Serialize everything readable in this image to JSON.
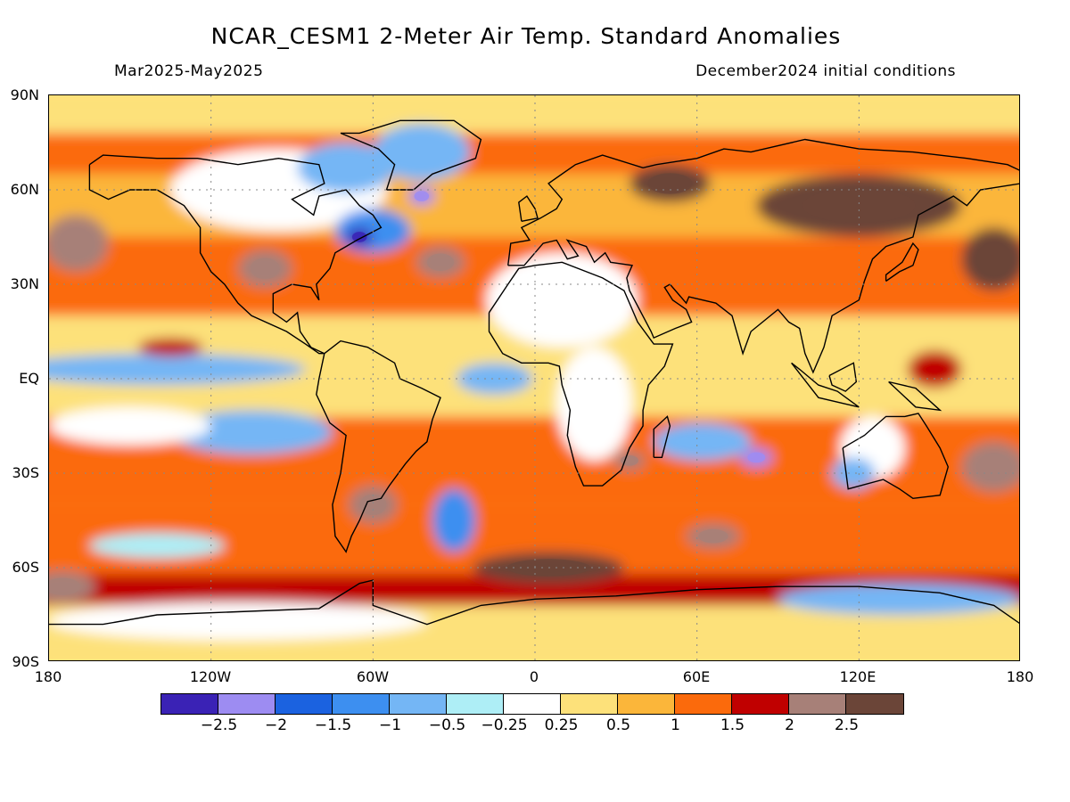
{
  "header": {
    "title": "NCAR_CESM1 2-Meter Air Temp. Standard Anomalies",
    "period": "Mar2025-May2025",
    "init": "December2024 initial conditions"
  },
  "axes": {
    "lat_labels": [
      "90N",
      "60N",
      "30N",
      "EQ",
      "30S",
      "60S",
      "90S"
    ],
    "lon_labels": [
      "180",
      "120W",
      "60W",
      "0",
      "60E",
      "120E",
      "180"
    ]
  },
  "legend": {
    "colors": [
      "#3a22b5",
      "#9d8cf2",
      "#1b62e0",
      "#3d8ff0",
      "#74b6f5",
      "#aeeef6",
      "#ffffff",
      "#fde17a",
      "#fbb63a",
      "#fb6a0c",
      "#c00000",
      "#a78078",
      "#6b4538"
    ],
    "labels": [
      "−2.5",
      "−2",
      "−1.5",
      "−1",
      "−0.5",
      "−0.25",
      "0.25",
      "0.5",
      "1",
      "1.5",
      "2",
      "2.5"
    ]
  },
  "chart_data": {
    "type": "heatmap",
    "variable": "2-Meter Air Temp. Standard Anomalies",
    "xlim": [
      -180,
      180
    ],
    "ylim": [
      -90,
      90
    ],
    "contour_levels": [
      -2.5,
      -2,
      -1.5,
      -1,
      -0.5,
      -0.25,
      0.25,
      0.5,
      1,
      1.5,
      2,
      2.5
    ],
    "regions": [
      {
        "lon": -95,
        "lat": 60,
        "rx": 40,
        "ry": 13,
        "level": 6
      },
      {
        "lon": -70,
        "lat": 67,
        "rx": 18,
        "ry": 8,
        "level": 4
      },
      {
        "lon": -42,
        "lat": 72,
        "rx": 18,
        "ry": 9,
        "level": 4
      },
      {
        "lon": -60,
        "lat": 47,
        "rx": 14,
        "ry": 7,
        "level": 3
      },
      {
        "lon": -65,
        "lat": 45,
        "rx": 5,
        "ry": 3,
        "level": 0
      },
      {
        "lon": -42,
        "lat": 58,
        "rx": 5,
        "ry": 3,
        "level": 1
      },
      {
        "lon": -140,
        "lat": 3,
        "rx": 55,
        "ry": 5,
        "level": 4
      },
      {
        "lon": -105,
        "lat": -17,
        "rx": 30,
        "ry": 7,
        "level": 4
      },
      {
        "lon": -150,
        "lat": -15,
        "rx": 30,
        "ry": 6,
        "level": 6
      },
      {
        "lon": 10,
        "lat": 25,
        "rx": 28,
        "ry": 15,
        "level": 6
      },
      {
        "lon": 22,
        "lat": -8,
        "rx": 14,
        "ry": 18,
        "level": 6
      },
      {
        "lon": -15,
        "lat": 0,
        "rx": 14,
        "ry": 5,
        "level": 4
      },
      {
        "lon": -30,
        "lat": -45,
        "rx": 8,
        "ry": 10,
        "level": 3
      },
      {
        "lon": 62,
        "lat": -20,
        "rx": 18,
        "ry": 6,
        "level": 4
      },
      {
        "lon": 82,
        "lat": -25,
        "rx": 6,
        "ry": 3,
        "level": 1
      },
      {
        "lon": 125,
        "lat": -22,
        "rx": 12,
        "ry": 10,
        "level": 6
      },
      {
        "lon": 118,
        "lat": -30,
        "rx": 8,
        "ry": 5,
        "level": 4
      },
      {
        "lon": 135,
        "lat": -70,
        "rx": 45,
        "ry": 5,
        "level": 4
      },
      {
        "lon": -110,
        "lat": -77,
        "rx": 70,
        "ry": 6,
        "level": 6
      },
      {
        "lon": -140,
        "lat": -53,
        "rx": 25,
        "ry": 4,
        "level": 5
      },
      {
        "lon": 120,
        "lat": 55,
        "rx": 38,
        "ry": 10,
        "level": 12
      },
      {
        "lon": 50,
        "lat": 62,
        "rx": 15,
        "ry": 6,
        "level": 12
      },
      {
        "lon": -170,
        "lat": 43,
        "rx": 12,
        "ry": 9,
        "level": 11
      },
      {
        "lon": 170,
        "lat": 38,
        "rx": 12,
        "ry": 10,
        "level": 12
      },
      {
        "lon": -35,
        "lat": 37,
        "rx": 9,
        "ry": 5,
        "level": 11
      },
      {
        "lon": -100,
        "lat": 35,
        "rx": 10,
        "ry": 6,
        "level": 11
      },
      {
        "lon": -135,
        "lat": 10,
        "rx": 12,
        "ry": 3,
        "level": 10
      },
      {
        "lon": -60,
        "lat": -40,
        "rx": 9,
        "ry": 6,
        "level": 11
      },
      {
        "lon": 35,
        "lat": -26,
        "rx": 6,
        "ry": 3,
        "level": 11
      },
      {
        "lon": 66,
        "lat": -50,
        "rx": 10,
        "ry": 4,
        "level": 11
      },
      {
        "lon": 5,
        "lat": -60,
        "rx": 28,
        "ry": 5,
        "level": 12
      },
      {
        "lon": -175,
        "lat": -66,
        "rx": 12,
        "ry": 5,
        "level": 11
      },
      {
        "lon": 170,
        "lat": -28,
        "rx": 12,
        "ry": 8,
        "level": 11
      },
      {
        "lon": 148,
        "lat": 3,
        "rx": 10,
        "ry": 6,
        "level": 10
      }
    ]
  }
}
